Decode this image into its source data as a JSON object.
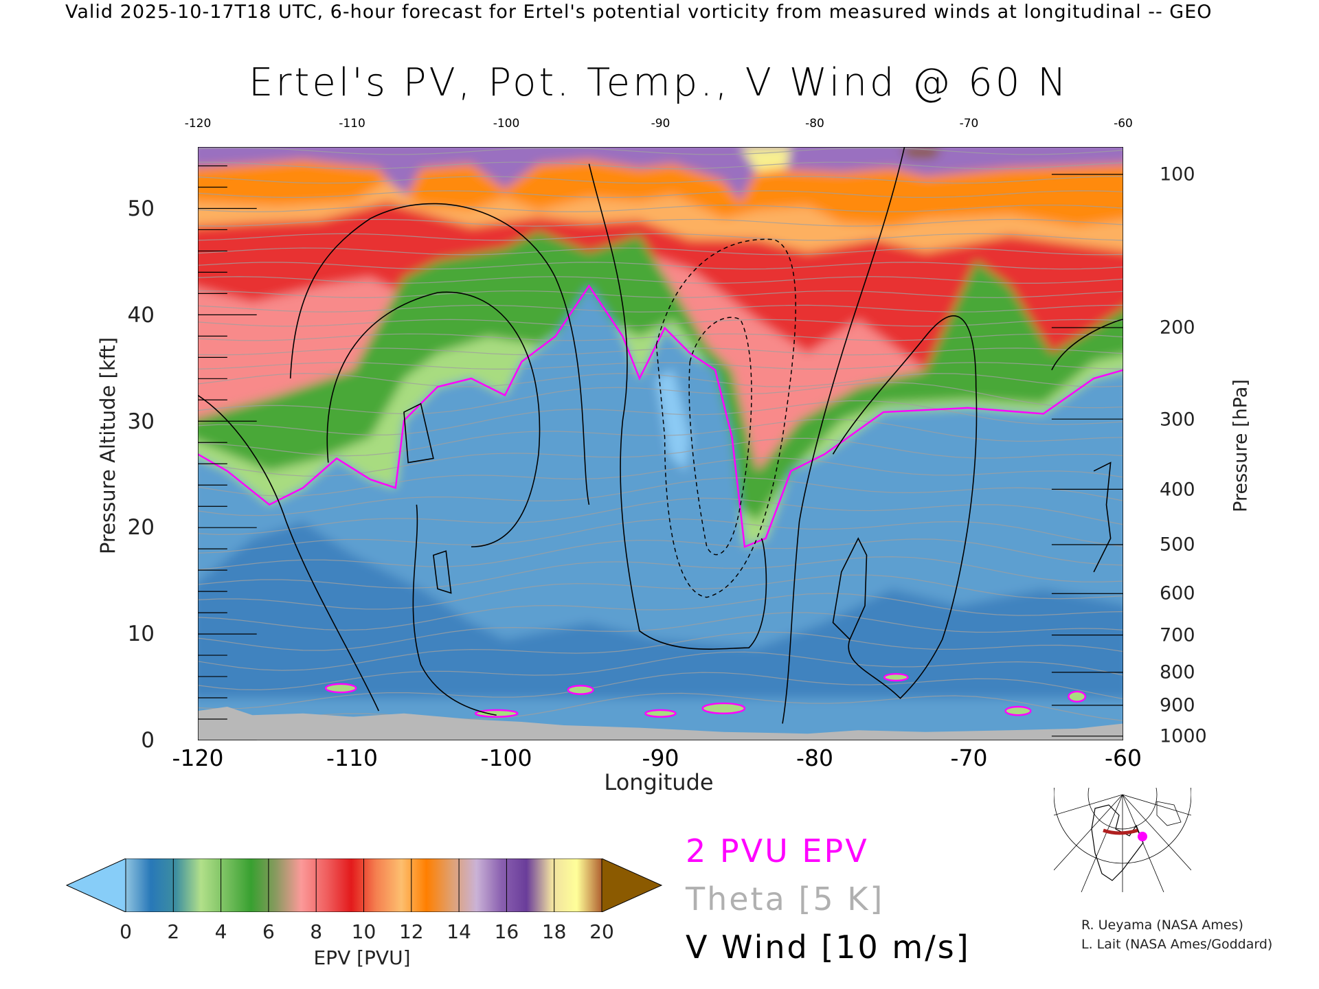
{
  "header": {
    "top_title": "Valid 2025-10-17T18 UTC, 6-hour forecast for Ertel's potential vorticity from measured winds at longitudinal -- GEO"
  },
  "chart_data": {
    "type": "heatmap",
    "title": "Ertel's PV, Pot. Temp., V Wind @ 60 N",
    "xlabel": "Longitude",
    "ylabel": "Pressure Altitude [kft]",
    "ylabel_right": "Pressure [hPa]",
    "xlim": [
      -120,
      -60
    ],
    "ylim": [
      0,
      56
    ],
    "x_ticks": [
      "-120",
      "-110",
      "-100",
      "-90",
      "-80",
      "-70",
      "-60"
    ],
    "x_tick_values": [
      -120,
      -110,
      -100,
      -90,
      -80,
      -70,
      -60
    ],
    "x_ticks_top": [
      "-120",
      "-110",
      "-100",
      "-90",
      "-80",
      "-70",
      "-60"
    ],
    "y_ticks": [
      "0",
      "10",
      "20",
      "30",
      "40",
      "50"
    ],
    "y_tick_values": [
      0,
      10,
      20,
      30,
      40,
      50
    ],
    "y_ticks_right": [
      {
        "label": "100",
        "kft": 53.2
      },
      {
        "label": "200",
        "kft": 38.8
      },
      {
        "label": "300",
        "kft": 30.2
      },
      {
        "label": "400",
        "kft": 23.6
      },
      {
        "label": "500",
        "kft": 18.4
      },
      {
        "label": "600",
        "kft": 13.8
      },
      {
        "label": "700",
        "kft": 9.9
      },
      {
        "label": "800",
        "kft": 6.4
      },
      {
        "label": "900",
        "kft": 3.3
      },
      {
        "label": "1000",
        "kft": 0.4
      }
    ],
    "field": "EPV [PVU]",
    "tropopause_2pvu_kft": [
      {
        "lon": -120,
        "kft": 27
      },
      {
        "lon": -116,
        "kft": 22
      },
      {
        "lon": -112,
        "kft": 26
      },
      {
        "lon": -108,
        "kft": 23
      },
      {
        "lon": -105,
        "kft": 30
      },
      {
        "lon": -101,
        "kft": 34
      },
      {
        "lon": -96,
        "kft": 36
      },
      {
        "lon": -94,
        "kft": 42
      },
      {
        "lon": -91,
        "kft": 33
      },
      {
        "lon": -89,
        "kft": 38
      },
      {
        "lon": -86,
        "kft": 33
      },
      {
        "lon": -84,
        "kft": 17
      },
      {
        "lon": -80,
        "kft": 24
      },
      {
        "lon": -74,
        "kft": 31
      },
      {
        "lon": -64,
        "kft": 31
      },
      {
        "lon": -60,
        "kft": 35
      }
    ],
    "colorbar": {
      "label": "EPV [PVU]",
      "ticks": [
        "0",
        "2",
        "4",
        "6",
        "8",
        "10",
        "12",
        "14",
        "16",
        "18",
        "20"
      ],
      "range": [
        0,
        20
      ],
      "colors": [
        "#8fc3e0",
        "#2878b8",
        "#3e8fa0",
        "#b2e08a",
        "#78c060",
        "#38a030",
        "#8a9a60",
        "#fb9a99",
        "#f06060",
        "#e31a1c",
        "#f58050",
        "#fdbf6f",
        "#ff7f00",
        "#e0a070",
        "#cab2d6",
        "#8a60b0",
        "#6a3d9a",
        "#f0e0a0",
        "#ffff99",
        "#b06030"
      ],
      "under_color": "#87cdf8",
      "over_color": "#8b5a00"
    },
    "legend": {
      "pv": "2 PVU EPV",
      "theta": "Theta [5 K]",
      "wind": "V Wind [10 m/s]",
      "pv_color": "#ff00ff",
      "theta_color": "#b0b0b0",
      "wind_color": "#000000"
    }
  },
  "credits": [
    "R. Ueyama (NASA Ames)",
    "L. Lait (NASA Ames/Goddard)"
  ]
}
